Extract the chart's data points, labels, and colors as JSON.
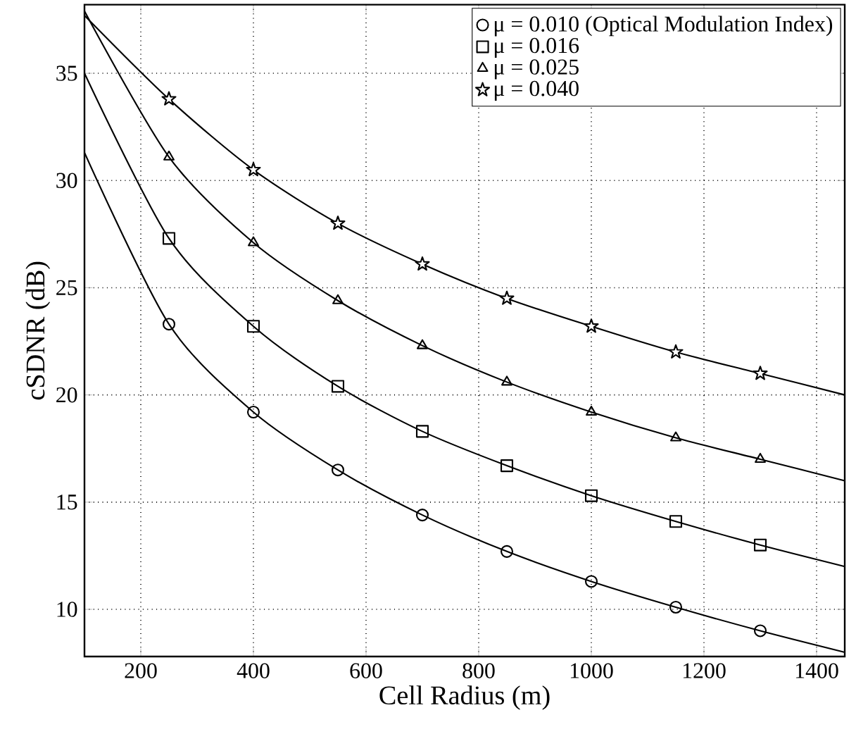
{
  "chart_data": {
    "type": "line",
    "xlabel": "Cell Radius (m)",
    "ylabel": "cSDNR (dB)",
    "xlim": [
      100,
      1450
    ],
    "ylim": [
      7.8,
      38.2
    ],
    "xticks": [
      200,
      400,
      600,
      800,
      1000,
      1200,
      1400
    ],
    "yticks": [
      10,
      15,
      20,
      25,
      30,
      35
    ],
    "grid": true,
    "legend": "top right",
    "line_style": "solid",
    "x": [
      100,
      250,
      400,
      550,
      700,
      850,
      1000,
      1150,
      1300,
      1450
    ],
    "series": [
      {
        "name": "μ = 0.010 (Optical Modulation Index)",
        "color": "#000000",
        "marker": "circle",
        "values": [
          31.3,
          23.3,
          19.2,
          16.5,
          14.4,
          12.7,
          11.3,
          10.1,
          9.0,
          8.0
        ]
      },
      {
        "name": "μ = 0.016",
        "color": "#000000",
        "marker": "square",
        "values": [
          35.0,
          27.3,
          23.2,
          20.4,
          18.3,
          16.7,
          15.3,
          14.1,
          13.0,
          12.0
        ]
      },
      {
        "name": "μ = 0.025",
        "color": "#000000",
        "marker": "triangle",
        "values": [
          37.9,
          31.1,
          27.1,
          24.4,
          22.3,
          20.6,
          19.2,
          18.0,
          17.0,
          16.0
        ]
      },
      {
        "name": "μ = 0.040",
        "color": "#000000",
        "marker": "star",
        "values": [
          37.7,
          33.8,
          30.5,
          28.0,
          26.1,
          24.5,
          23.2,
          22.0,
          21.0,
          20.0
        ]
      }
    ]
  }
}
